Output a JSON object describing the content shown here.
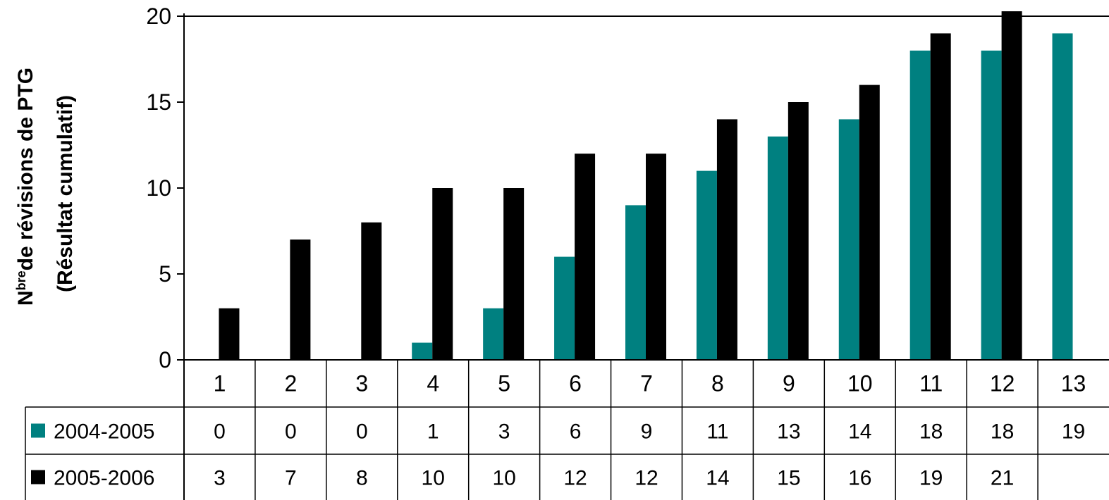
{
  "chart_data": {
    "type": "bar",
    "ylabel_line1_prefix": "N",
    "ylabel_line1_sup": "bre",
    "ylabel_line1_rest": "de révisions de PTG",
    "ylabel_line2": "(Résultat cumulatif)",
    "ylim": [
      0,
      20
    ],
    "yticks": [
      "0",
      "5",
      "10",
      "15",
      "20"
    ],
    "categories": [
      "1",
      "2",
      "3",
      "4",
      "5",
      "6",
      "7",
      "8",
      "9",
      "10",
      "11",
      "12",
      "13"
    ],
    "series": [
      {
        "name": "2004-2005",
        "color": "#008080",
        "values": [
          0,
          0,
          0,
          1,
          3,
          6,
          9,
          11,
          13,
          14,
          18,
          18,
          19
        ]
      },
      {
        "name": "2005-2006",
        "color": "#000000",
        "values": [
          3,
          7,
          8,
          10,
          10,
          12,
          12,
          14,
          15,
          16,
          19,
          21,
          null
        ]
      }
    ],
    "grid": false,
    "legend": "data-table"
  }
}
